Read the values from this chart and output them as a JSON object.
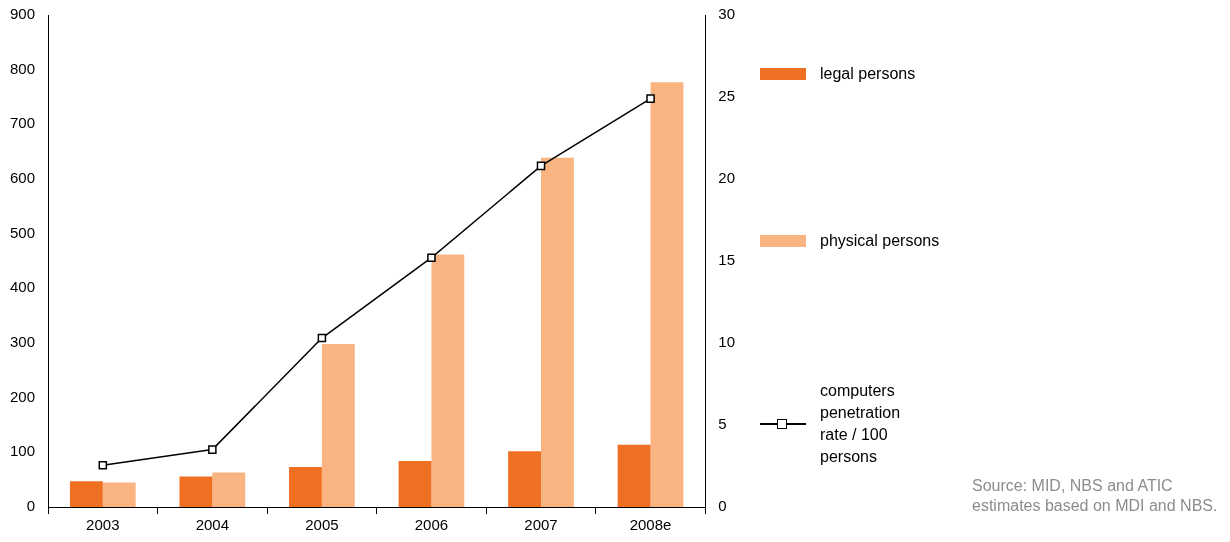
{
  "chart_data": {
    "type": "bar",
    "categories": [
      "2003",
      "2004",
      "2005",
      "2006",
      "2007",
      "2008e"
    ],
    "series": [
      {
        "name": "legal persons",
        "color": "#f07023",
        "values": [
          47,
          56,
          73,
          84,
          102,
          114
        ]
      },
      {
        "name": "physical persons",
        "color": "#f9b482",
        "values": [
          45,
          63,
          298,
          462,
          639,
          777
        ]
      },
      {
        "name": "computers penetration rate / 100 persons",
        "type": "line",
        "axis": "y2",
        "color": "#000000",
        "marker": "square",
        "values": [
          2.55,
          3.5,
          10.3,
          15.2,
          20.8,
          24.9
        ]
      }
    ],
    "ylim": [
      0,
      900
    ],
    "yticks": [
      0,
      100,
      200,
      300,
      400,
      500,
      600,
      700,
      800,
      900
    ],
    "y2lim": [
      0,
      30
    ],
    "y2ticks": [
      0,
      5,
      10,
      15,
      20,
      25,
      30
    ],
    "grid": false,
    "legend": "right",
    "annotations": [
      "Source: MID, NBS and ATIC estimates based on MDI and NBS."
    ]
  }
}
